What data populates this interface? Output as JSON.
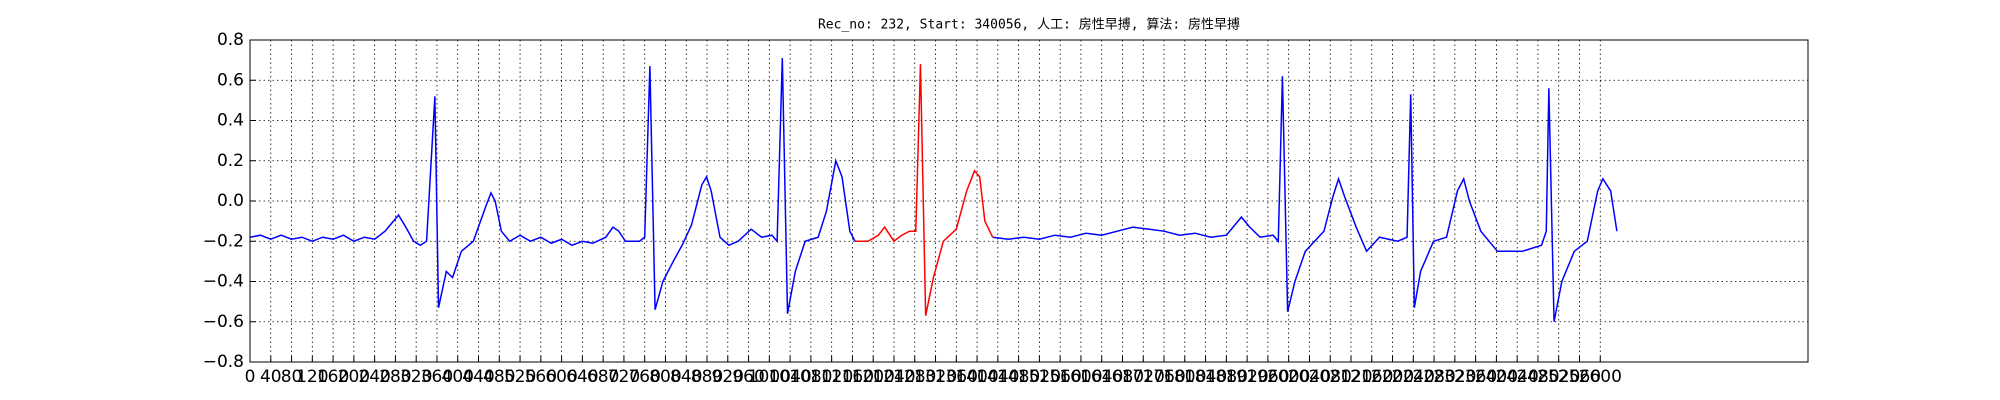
{
  "chart_data": {
    "type": "line",
    "title": "Rec_no: 232, Start: 340056, 人工: 房性早搏, 算法: 房性早搏",
    "x": [
      0,
      20,
      40,
      60,
      80,
      100,
      120,
      140,
      160,
      180,
      200,
      220,
      240,
      260,
      286,
      300,
      315,
      328,
      340,
      356,
      363,
      378,
      390,
      407,
      430,
      455,
      464,
      472,
      484,
      500,
      520,
      540,
      560,
      580,
      600,
      620,
      640,
      660,
      685,
      699,
      710,
      723,
      750,
      760,
      770,
      780,
      795,
      815,
      832,
      850,
      870,
      879,
      888,
      905,
      922,
      940,
      965,
      985,
      1005,
      1015,
      1025,
      1035,
      1050,
      1069,
      1094,
      1110,
      1128,
      1140,
      1155,
      1165,
      1190,
      1210,
      1222,
      1240,
      1255,
      1270,
      1282,
      1291,
      1301,
      1316,
      1335,
      1360,
      1380,
      1395,
      1405,
      1415,
      1430,
      1460,
      1490,
      1520,
      1550,
      1580,
      1610,
      1640,
      1670,
      1700,
      1730,
      1760,
      1790,
      1820,
      1850,
      1880,
      1909,
      1925,
      1945,
      1970,
      1980,
      1988,
      1998,
      2012,
      2032,
      2068,
      2085,
      2096,
      2108,
      2130,
      2150,
      2175,
      2210,
      2228,
      2235,
      2242,
      2254,
      2279,
      2304,
      2325,
      2337,
      2348,
      2370,
      2402,
      2450,
      2487,
      2496,
      2501,
      2511,
      2526,
      2550,
      2575,
      2595,
      2605,
      2620,
      2632
    ],
    "series": [
      {
        "color": "#0000ff",
        "values": [
          -0.18,
          -0.17,
          -0.19,
          -0.17,
          -0.19,
          -0.18,
          -0.2,
          -0.18,
          -0.19,
          -0.17,
          -0.2,
          -0.18,
          -0.19,
          -0.15,
          -0.07,
          -0.13,
          -0.2,
          -0.22,
          -0.2,
          0.52,
          -0.53,
          -0.35,
          -0.38,
          -0.25,
          -0.2,
          -0.02,
          0.04,
          0.0,
          -0.15,
          -0.2,
          -0.17,
          -0.2,
          -0.18,
          -0.21,
          -0.19,
          -0.22,
          -0.2,
          -0.21,
          -0.18,
          -0.13,
          -0.15,
          -0.2,
          -0.2,
          -0.18,
          0.67,
          -0.54,
          -0.4,
          -0.3,
          -0.22,
          -0.12,
          0.08,
          0.12,
          0.05,
          -0.18,
          -0.22,
          -0.2,
          -0.14,
          -0.18,
          -0.17,
          -0.2,
          0.71,
          -0.56,
          -0.35,
          -0.2,
          -0.18,
          -0.05,
          0.2,
          0.12,
          -0.15,
          -0.2,
          null,
          null,
          null,
          null,
          null,
          null,
          null,
          null,
          null,
          null,
          null,
          null,
          null,
          null,
          null,
          null,
          -0.18,
          -0.19,
          -0.18,
          -0.19,
          -0.17,
          -0.18,
          -0.16,
          -0.17,
          -0.15,
          -0.13,
          -0.14,
          -0.15,
          -0.17,
          -0.16,
          -0.18,
          -0.17,
          -0.08,
          -0.13,
          -0.18,
          -0.17,
          -0.2,
          0.62,
          -0.55,
          -0.4,
          -0.25,
          -0.15,
          0.02,
          0.11,
          0.02,
          -0.13,
          -0.25,
          -0.18,
          -0.2,
          -0.18,
          0.53,
          -0.53,
          -0.35,
          -0.2,
          -0.18,
          0.05,
          0.11,
          0.0,
          -0.15,
          -0.25,
          -0.25,
          -0.22,
          -0.15,
          0.56,
          -0.6,
          -0.4,
          -0.25,
          -0.2,
          0.05,
          0.11,
          0.05,
          -0.15
        ]
      },
      {
        "color": "#ff0000",
        "values": [
          null,
          null,
          null,
          null,
          null,
          null,
          null,
          null,
          null,
          null,
          null,
          null,
          null,
          null,
          null,
          null,
          null,
          null,
          null,
          null,
          null,
          null,
          null,
          null,
          null,
          null,
          null,
          null,
          null,
          null,
          null,
          null,
          null,
          null,
          null,
          null,
          null,
          null,
          null,
          null,
          null,
          null,
          null,
          null,
          null,
          null,
          null,
          null,
          null,
          null,
          null,
          null,
          null,
          null,
          null,
          null,
          null,
          null,
          null,
          null,
          null,
          null,
          null,
          null,
          null,
          null,
          null,
          null,
          null,
          -0.2,
          -0.2,
          -0.17,
          -0.13,
          -0.2,
          -0.17,
          -0.15,
          -0.15,
          0.68,
          -0.57,
          -0.38,
          -0.2,
          -0.14,
          0.05,
          0.15,
          0.12,
          -0.1,
          -0.18,
          null,
          null,
          null,
          null,
          null,
          null,
          null,
          null,
          null,
          null,
          null,
          null,
          null,
          null,
          null,
          null,
          null,
          null,
          null,
          null,
          null,
          null,
          null,
          null,
          null,
          null,
          null,
          null,
          null,
          null,
          null,
          null,
          null,
          null,
          null,
          null,
          null,
          null,
          null,
          null,
          null,
          null,
          null,
          null,
          null,
          null,
          null,
          null,
          null,
          null,
          null,
          null,
          null,
          null,
          null
        ]
      }
    ],
    "xlim": [
      0,
      3000
    ],
    "xticks": [
      0,
      40,
      80,
      120,
      160,
      200,
      240,
      280,
      320,
      360,
      400,
      440,
      480,
      520,
      560,
      600,
      640,
      680,
      720,
      760,
      800,
      840,
      880,
      920,
      960,
      1000,
      1040,
      1080,
      1120,
      1160,
      1200,
      1240,
      1280,
      1320,
      1360,
      1400,
      1440,
      1480,
      1520,
      1560,
      1600,
      1640,
      1680,
      1720,
      1760,
      1800,
      1840,
      1880,
      1920,
      1960,
      2000,
      2040,
      2080,
      2120,
      2160,
      2200,
      2240,
      2280,
      2320,
      2360,
      2400,
      2440,
      2480,
      2520,
      2560,
      2600
    ],
    "ylim": [
      -0.8,
      0.8
    ],
    "yticks": [
      {
        "value": -0.8,
        "label": "−0.8"
      },
      {
        "value": -0.6,
        "label": "−0.6"
      },
      {
        "value": -0.4,
        "label": "−0.4"
      },
      {
        "value": -0.2,
        "label": "−0.2"
      },
      {
        "value": 0.0,
        "label": "0.0"
      },
      {
        "value": 0.2,
        "label": "0.2"
      },
      {
        "value": 0.4,
        "label": "0.4"
      },
      {
        "value": 0.6,
        "label": "0.6"
      },
      {
        "value": 0.8,
        "label": "0.8"
      }
    ],
    "grid": true
  }
}
